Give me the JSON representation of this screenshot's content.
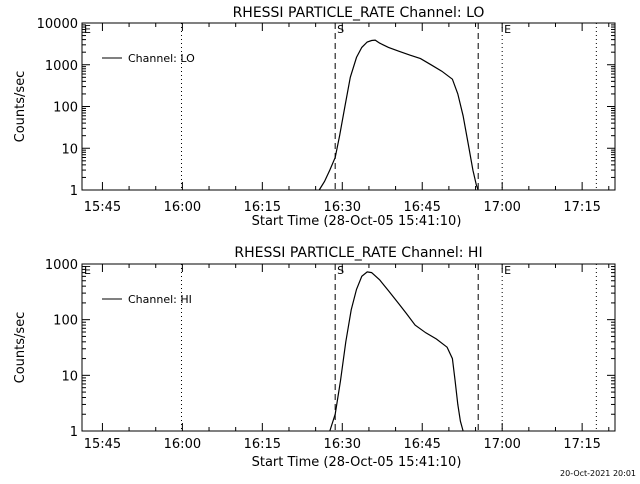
{
  "footer": {
    "timestamp": "20-Oct-2021 20:01"
  },
  "chart_data": [
    {
      "type": "line",
      "title": "RHESSI PARTICLE_RATE Channel: LO",
      "xlabel": "Start Time (28-Oct-05 15:41:10)",
      "ylabel": "Counts/sec",
      "yscale": "log",
      "ylim": [
        1,
        10000
      ],
      "xlim": [
        "15:41:10",
        "17:21:10"
      ],
      "ytick_labels": [
        "1",
        "10",
        "100",
        "1000",
        "10000"
      ],
      "xtick_labels": [
        "15:45",
        "16:00",
        "16:15",
        "16:30",
        "16:45",
        "17:00",
        "17:15"
      ],
      "legend": {
        "label": "Channel: LO",
        "position": "top-left"
      },
      "markers": [
        {
          "time": "16:28:40",
          "label": "S",
          "style": "dashed"
        },
        {
          "time": "16:55:30",
          "label": "",
          "style": "dashed"
        },
        {
          "time": "17:00:00",
          "label": "E",
          "style": "dotted"
        },
        {
          "time": "15:41:10",
          "label": "E",
          "style": "dotted"
        },
        {
          "time": "15:59:50",
          "label": "",
          "style": "dotted"
        },
        {
          "time": "17:17:40",
          "label": "",
          "style": "dotted"
        }
      ],
      "series": [
        {
          "name": "Channel: LO",
          "color": "#000000",
          "x": [
            "16:25:40",
            "16:26:40",
            "16:27:40",
            "16:28:40",
            "16:29:30",
            "16:30:30",
            "16:31:30",
            "16:32:40",
            "16:33:40",
            "16:34:40",
            "16:35:30",
            "16:36:10",
            "16:37:00",
            "16:38:40",
            "16:40:40",
            "16:42:40",
            "16:44:40",
            "16:46:40",
            "16:48:40",
            "16:50:40",
            "16:51:40",
            "16:52:40",
            "16:53:40",
            "16:54:30",
            "16:55:10",
            "16:55:30"
          ],
          "values": [
            1,
            1.6,
            3,
            6,
            20,
            100,
            500,
            1500,
            2600,
            3500,
            3800,
            3900,
            3300,
            2600,
            2100,
            1700,
            1400,
            1000,
            700,
            450,
            200,
            60,
            12,
            3,
            1.3,
            1
          ]
        }
      ]
    },
    {
      "type": "line",
      "title": "RHESSI PARTICLE_RATE Channel: HI",
      "xlabel": "Start Time (28-Oct-05 15:41:10)",
      "ylabel": "Counts/sec",
      "yscale": "log",
      "ylim": [
        1,
        1000
      ],
      "xlim": [
        "15:41:10",
        "17:21:10"
      ],
      "ytick_labels": [
        "1",
        "10",
        "100",
        "1000"
      ],
      "xtick_labels": [
        "15:45",
        "16:00",
        "16:15",
        "16:30",
        "16:45",
        "17:00",
        "17:15"
      ],
      "legend": {
        "label": "Channel: HI",
        "position": "top-left"
      },
      "markers": [
        {
          "time": "16:28:40",
          "label": "S",
          "style": "dashed"
        },
        {
          "time": "16:55:30",
          "label": "",
          "style": "dashed"
        },
        {
          "time": "17:00:00",
          "label": "E",
          "style": "dotted"
        },
        {
          "time": "15:41:10",
          "label": "E",
          "style": "dotted"
        },
        {
          "time": "15:59:50",
          "label": "",
          "style": "dotted"
        },
        {
          "time": "17:17:40",
          "label": "",
          "style": "dotted"
        }
      ],
      "series": [
        {
          "name": "Channel: HI",
          "color": "#000000",
          "x": [
            "16:27:40",
            "16:28:40",
            "16:29:40",
            "16:30:40",
            "16:31:40",
            "16:32:40",
            "16:33:40",
            "16:34:40",
            "16:35:30",
            "16:37:00",
            "16:38:40",
            "16:40:40",
            "16:42:00",
            "16:43:40",
            "16:45:40",
            "16:47:40",
            "16:49:40",
            "16:50:40",
            "16:51:10",
            "16:51:40",
            "16:52:10",
            "16:52:40"
          ],
          "values": [
            1,
            2,
            8,
            40,
            150,
            350,
            600,
            720,
            700,
            520,
            330,
            190,
            130,
            80,
            58,
            45,
            32,
            20,
            8,
            3,
            1.5,
            1
          ]
        }
      ]
    }
  ]
}
